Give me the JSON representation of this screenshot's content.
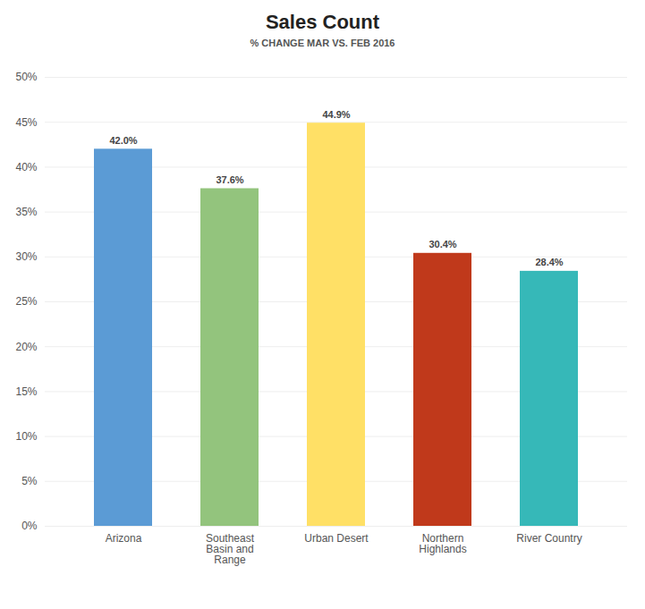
{
  "chart_data": {
    "type": "bar",
    "title": "Sales Count",
    "subtitle": "% CHANGE MAR VS. FEB 2016",
    "categories": [
      "Arizona",
      "Southeast\nBasin and\nRange",
      "Urban Desert",
      "Northern\nHighlands",
      "River Country"
    ],
    "values": [
      42.0,
      37.6,
      44.9,
      30.4,
      28.4
    ],
    "value_labels": [
      "42.0%",
      "37.6%",
      "44.9%",
      "30.4%",
      "28.4%"
    ],
    "colors": [
      "#5B9BD5",
      "#93C47D",
      "#FFE066",
      "#C0391B",
      "#36B8B8"
    ],
    "ylim": [
      0,
      50
    ],
    "yticks": [
      {
        "value": 0,
        "label": "0%"
      },
      {
        "value": 5,
        "label": "5%"
      },
      {
        "value": 10,
        "label": "10%"
      },
      {
        "value": 15,
        "label": "15%"
      },
      {
        "value": 20,
        "label": "20%"
      },
      {
        "value": 25,
        "label": "25%"
      },
      {
        "value": 30,
        "label": "30%"
      },
      {
        "value": 35,
        "label": "35%"
      },
      {
        "value": 40,
        "label": "40%"
      },
      {
        "value": 45,
        "label": "45%"
      },
      {
        "value": 50,
        "label": "50%"
      }
    ],
    "grid": true,
    "data_labels": true
  }
}
